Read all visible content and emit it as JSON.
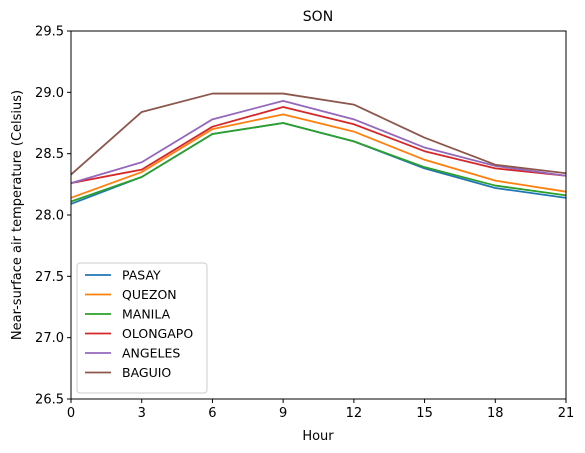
{
  "chart_data": {
    "type": "line",
    "title": "SON",
    "xlabel": "Hour",
    "ylabel": "Near-surface air temperature (Celsius)",
    "x": [
      0,
      3,
      6,
      9,
      12,
      15,
      18,
      21
    ],
    "xlim": [
      0,
      21
    ],
    "ylim": [
      26.5,
      29.5
    ],
    "xticks": [
      "0",
      "3",
      "6",
      "9",
      "12",
      "15",
      "18",
      "21"
    ],
    "yticks": [
      "26.5",
      "27.0",
      "27.5",
      "28.0",
      "28.5",
      "29.0",
      "29.5"
    ],
    "grid": false,
    "legend_position": "lower-left",
    "series": [
      {
        "name": "PASAY",
        "color": "#1f77b4",
        "values": [
          28.09,
          28.31,
          28.66,
          28.75,
          28.6,
          28.38,
          28.22,
          28.14
        ]
      },
      {
        "name": "QUEZON",
        "color": "#ff7f0e",
        "values": [
          28.14,
          28.35,
          28.7,
          28.82,
          28.68,
          28.45,
          28.28,
          28.19
        ]
      },
      {
        "name": "MANILA",
        "color": "#2ca02c",
        "values": [
          28.11,
          28.31,
          28.66,
          28.75,
          28.6,
          28.39,
          28.24,
          28.16
        ]
      },
      {
        "name": "OLONGAPO",
        "color": "#d62728",
        "values": [
          28.26,
          28.37,
          28.72,
          28.88,
          28.74,
          28.52,
          28.38,
          28.32
        ]
      },
      {
        "name": "ANGELES",
        "color": "#9467bd",
        "values": [
          28.26,
          28.43,
          28.78,
          28.93,
          28.78,
          28.55,
          28.4,
          28.32
        ]
      },
      {
        "name": "BAGUIO",
        "color": "#8c564b",
        "values": [
          28.33,
          28.84,
          28.99,
          28.99,
          28.9,
          28.63,
          28.41,
          28.34
        ]
      }
    ]
  }
}
